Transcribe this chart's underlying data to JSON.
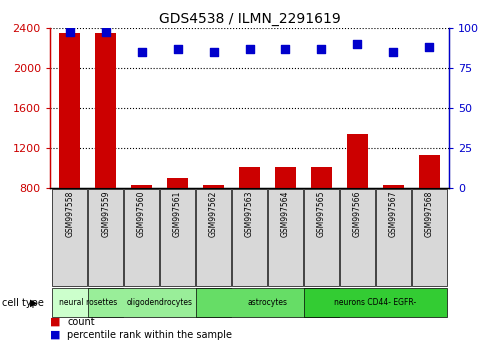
{
  "title": "GDS4538 / ILMN_2291619",
  "samples": [
    "GSM997558",
    "GSM997559",
    "GSM997560",
    "GSM997561",
    "GSM997562",
    "GSM997563",
    "GSM997564",
    "GSM997565",
    "GSM997566",
    "GSM997567",
    "GSM997568"
  ],
  "counts": [
    2350,
    2355,
    822,
    900,
    823,
    1010,
    1005,
    1010,
    1340,
    822,
    1130
  ],
  "percentile_ranks": [
    98,
    98,
    85,
    87,
    85,
    87,
    87,
    87,
    90,
    85,
    88
  ],
  "ylim_left": [
    800,
    2400
  ],
  "ylim_right": [
    0,
    100
  ],
  "yticks_left": [
    800,
    1200,
    1600,
    2000,
    2400
  ],
  "yticks_right": [
    0,
    25,
    50,
    75,
    100
  ],
  "cell_types": [
    {
      "label": "neural rosettes",
      "start": 0,
      "end": 1,
      "color": "#ccffcc"
    },
    {
      "label": "oligodendrocytes",
      "start": 1,
      "end": 4,
      "color": "#99ee99"
    },
    {
      "label": "astrocytes",
      "start": 4,
      "end": 7,
      "color": "#66dd66"
    },
    {
      "label": "neurons CD44- EGFR-",
      "start": 7,
      "end": 10,
      "color": "#33cc33"
    }
  ],
  "bar_color": "#cc0000",
  "dot_color": "#0000cc",
  "grid_color": "#000000",
  "bg_color": "#ffffff",
  "tick_bg_color": "#d8d8d8",
  "left_axis_color": "#cc0000",
  "right_axis_color": "#0000cc"
}
